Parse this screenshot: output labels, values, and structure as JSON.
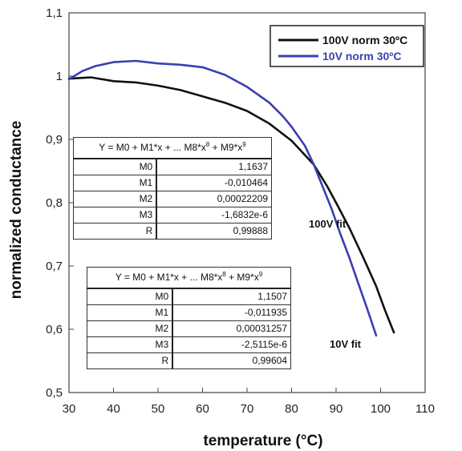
{
  "chart_data": {
    "type": "line",
    "title": "",
    "xlabel": "temperature (°C)",
    "ylabel": "normalized conductance",
    "xlim": [
      30,
      110
    ],
    "ylim": [
      0.5,
      1.1
    ],
    "xticks": [
      30,
      40,
      50,
      60,
      70,
      80,
      90,
      100,
      110
    ],
    "yticks": [
      0.5,
      0.6,
      0.7,
      0.8,
      0.9,
      1.0,
      1.1
    ],
    "ytick_labels": [
      "0,5",
      "0,6",
      "0,7",
      "0,8",
      "0,9",
      "1",
      "1,1"
    ],
    "legend_position": "top-right",
    "series": [
      {
        "name": "100V  norm 30ºC",
        "color": "#111111",
        "x": [
          30,
          35,
          40,
          45,
          50,
          55,
          60,
          65,
          70,
          75,
          80,
          85,
          88,
          90,
          93,
          96,
          99,
          101,
          103
        ],
        "y": [
          0.996,
          0.998,
          0.992,
          0.99,
          0.985,
          0.978,
          0.968,
          0.958,
          0.945,
          0.925,
          0.898,
          0.86,
          0.826,
          0.8,
          0.76,
          0.715,
          0.668,
          0.63,
          0.595
        ]
      },
      {
        "name": "10V norm 30ºC",
        "color": "#3a3fb0",
        "x": [
          30,
          33,
          36,
          40,
          45,
          50,
          55,
          60,
          65,
          70,
          75,
          78,
          80,
          83,
          85,
          87,
          89,
          91,
          93,
          95,
          97,
          99
        ],
        "y": [
          0.995,
          1.008,
          1.016,
          1.022,
          1.024,
          1.02,
          1.018,
          1.014,
          1.002,
          0.983,
          0.958,
          0.937,
          0.92,
          0.89,
          0.86,
          0.825,
          0.79,
          0.75,
          0.713,
          0.672,
          0.632,
          0.59
        ]
      }
    ],
    "annotations": [
      "100V fit",
      "10V fit"
    ],
    "fit_tables": [
      {
        "equation": "Y = M0 + M1*x + ... M8*x8 + M9*x9",
        "params": [
          {
            "name": "M0",
            "value": "1,1637"
          },
          {
            "name": "M1",
            "value": "-0,010464"
          },
          {
            "name": "M2",
            "value": "0,00022209"
          },
          {
            "name": "M3",
            "value": "-1,6832e-6"
          },
          {
            "name": "R",
            "value": "0,99888"
          }
        ]
      },
      {
        "equation": "Y = M0 + M1*x + ... M8*x8 + M9*x9",
        "params": [
          {
            "name": "M0",
            "value": "1,1507"
          },
          {
            "name": "M1",
            "value": "-0,011935"
          },
          {
            "name": "M2",
            "value": "0,00031257"
          },
          {
            "name": "M3",
            "value": "-2,5115e-6"
          },
          {
            "name": "R",
            "value": "0,99604"
          }
        ]
      }
    ]
  },
  "equation_parts": {
    "lhs": "Y = M0 + M1*x + ... M8*x",
    "exp8": "8",
    "mid": " + M9*x",
    "exp9": "9"
  }
}
